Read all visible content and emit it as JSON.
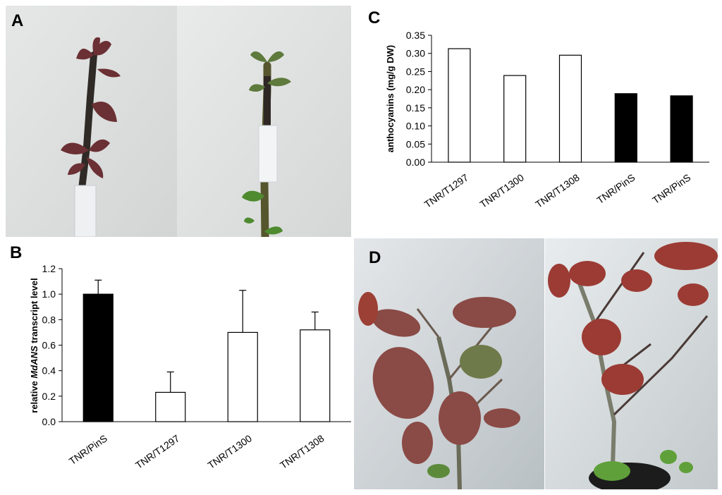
{
  "panels": {
    "a": "A",
    "b": "B",
    "c": "C",
    "d": "D"
  },
  "photos": {
    "a_left": "photo-left-twig-red-leaves",
    "a_right": "photo-right-twig-green-leaves",
    "d_left": "photo-plant-bronze-leaves",
    "d_right": "photo-plant-red-leaves-potted"
  },
  "chart_data": [
    {
      "panel": "B",
      "type": "bar",
      "ylabel_prefix": "relative ",
      "ylabel_italic": "MdANS",
      "ylabel_suffix": " transcript level",
      "ylim": [
        0,
        1.2
      ],
      "yticks": [
        "0.0",
        "0.2",
        "0.4",
        "0.6",
        "0.8",
        "1.0",
        "1.2"
      ],
      "categories": [
        "TNR/PinS",
        "TNR/T1297",
        "TNR/T1300",
        "TNR/T1308"
      ],
      "values": [
        1.0,
        0.23,
        0.7,
        0.72
      ],
      "errors": [
        0.11,
        0.16,
        0.33,
        0.14
      ],
      "fills": [
        "#000000",
        "#ffffff",
        "#ffffff",
        "#ffffff"
      ],
      "grid": false
    },
    {
      "panel": "C",
      "type": "bar",
      "ylabel": "anthocyanins (mg/g DW)",
      "ylim": [
        0,
        0.35
      ],
      "yticks": [
        "0.00",
        "0.05",
        "0.10",
        "0.15",
        "0.20",
        "0.25",
        "0.30",
        "0.35"
      ],
      "categories": [
        "TNR/T1297",
        "TNR/T1300",
        "TNR/T1308",
        "TNR/PinS",
        "TNR/PinS"
      ],
      "values": [
        0.313,
        0.239,
        0.295,
        0.189,
        0.183
      ],
      "fills": [
        "#ffffff",
        "#ffffff",
        "#ffffff",
        "#000000",
        "#000000"
      ],
      "grid": false
    }
  ]
}
